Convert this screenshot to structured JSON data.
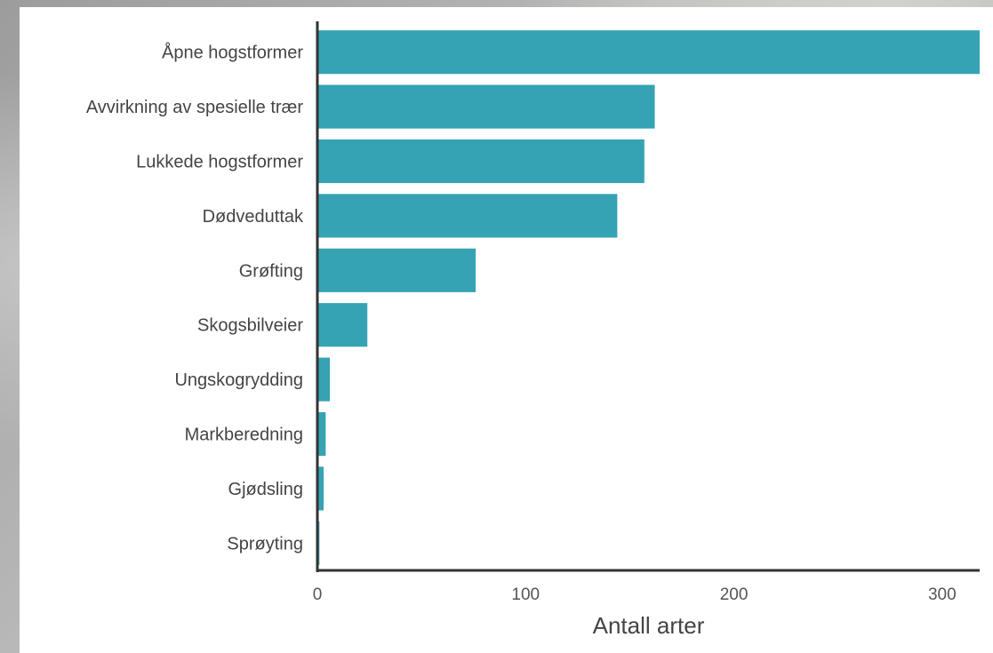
{
  "chart_data": {
    "type": "bar",
    "orientation": "horizontal",
    "categories": [
      "Åpne hogstformer",
      "Avvirkning av spesielle trær",
      "Lukkede hogstformer",
      "Dødveduttak",
      "Grøfting",
      "Skogsbilveier",
      "Ungskogrydding",
      "Markberedning",
      "Gjødsling",
      "Sprøyting"
    ],
    "values": [
      318,
      162,
      157,
      144,
      76,
      24,
      6,
      4,
      3,
      1
    ],
    "title": "",
    "xlabel": "Antall arter",
    "ylabel": "",
    "xlim": [
      0,
      318
    ],
    "xticks": [
      0,
      100,
      200,
      300
    ],
    "xtick_labels": [
      "0",
      "100",
      "200",
      "300"
    ],
    "grid": false,
    "bar_color": "#35a3b3"
  }
}
